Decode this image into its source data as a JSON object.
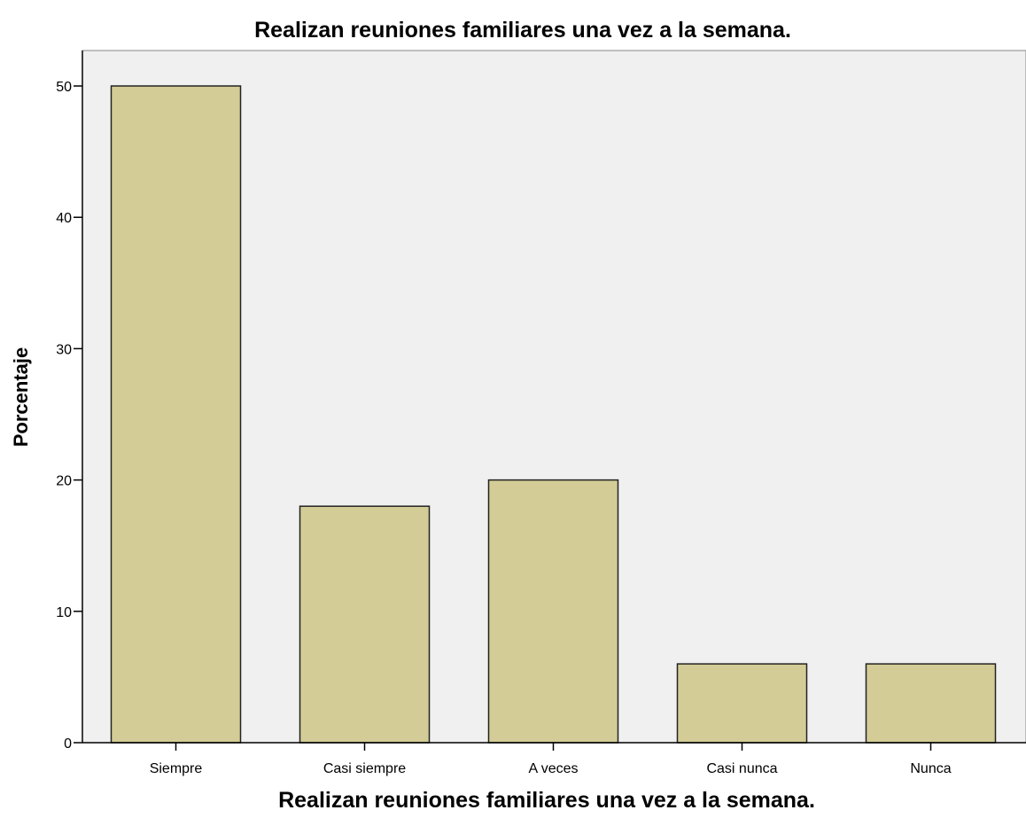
{
  "chart_data": {
    "type": "bar",
    "title": "Realizan reuniones familiares una vez a la semana.",
    "xlabel": "Realizan reuniones familiares una vez a la semana.",
    "ylabel": "Porcentaje",
    "categories": [
      "Siempre",
      "Casi siempre",
      "A veces",
      "Casi nunca",
      "Nunca"
    ],
    "values": [
      50,
      18,
      20,
      6,
      6
    ],
    "ylim": [
      0,
      52.7
    ],
    "yticks": [
      0,
      10,
      20,
      30,
      40,
      50
    ],
    "grid": false,
    "legend": "none",
    "colors": {
      "bar_fill": "#d3cc96",
      "bar_stroke": "#222222",
      "plot_background": "#f0f0f0",
      "axis": "#000000"
    }
  }
}
